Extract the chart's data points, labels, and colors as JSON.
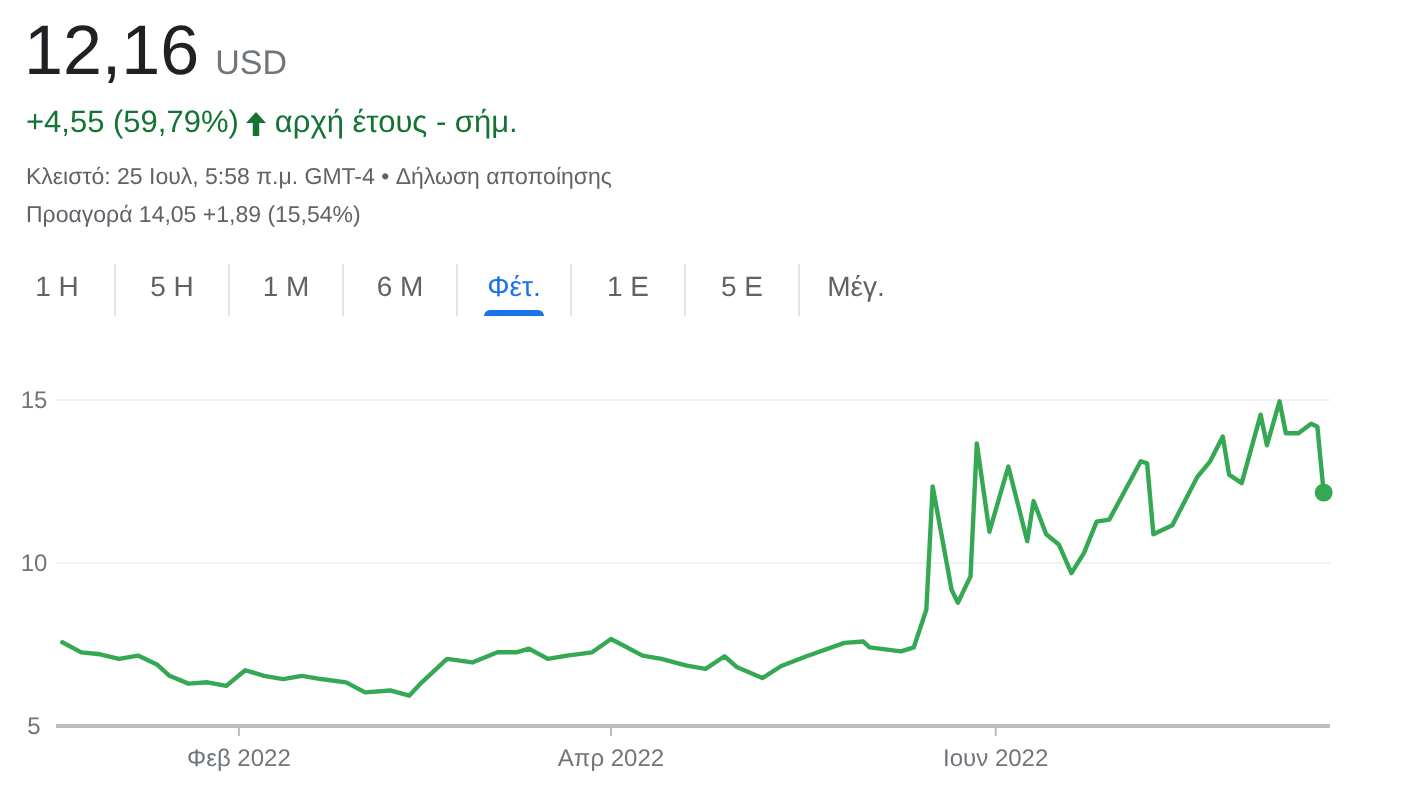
{
  "chart_data": {
    "type": "line",
    "title": "12,16 USD",
    "subtitle": "+4,55 (59,79%)",
    "annotations": [
      "αρχή έτους - σήμ.",
      "Κλειστό: 25 Ιουλ, 5:58 π.μ. GMT-4 • Δήλωση αποποίησης",
      "Προαγορά 14,05 +1,89 (15,54%)",
      "1 Η",
      "5 Η",
      "1 Μ",
      "6 Μ",
      "Φέτ.",
      "1 Ε",
      "5 Ε",
      "Μέγ."
    ],
    "x": [
      "2022-01-04",
      "2022-01-07",
      "2022-01-10",
      "2022-01-13",
      "2022-01-16",
      "2022-01-19",
      "2022-01-21",
      "2022-01-24",
      "2022-01-27",
      "2022-01-30",
      "2022-02-02",
      "2022-02-05",
      "2022-02-08",
      "2022-02-11",
      "2022-02-14",
      "2022-02-18",
      "2022-02-21",
      "2022-02-25",
      "2022-02-28",
      "2022-03-02",
      "2022-03-06",
      "2022-03-10",
      "2022-03-14",
      "2022-03-17",
      "2022-03-19",
      "2022-03-22",
      "2022-03-25",
      "2022-03-29",
      "2022-04-01",
      "2022-04-06",
      "2022-04-09",
      "2022-04-13",
      "2022-04-16",
      "2022-04-19",
      "2022-04-21",
      "2022-04-25",
      "2022-04-28",
      "2022-05-02",
      "2022-05-08",
      "2022-05-11",
      "2022-05-12",
      "2022-05-17",
      "2022-05-19",
      "2022-05-21",
      "2022-05-22",
      "2022-05-25",
      "2022-05-26",
      "2022-05-28",
      "2022-05-29",
      "2022-05-31",
      "2022-06-03",
      "2022-06-06",
      "2022-06-07",
      "2022-06-09",
      "2022-06-11",
      "2022-06-13",
      "2022-06-15",
      "2022-06-17",
      "2022-06-19",
      "2022-06-24",
      "2022-06-25",
      "2022-06-26",
      "2022-06-29",
      "2022-07-03",
      "2022-07-05",
      "2022-07-07",
      "2022-07-08",
      "2022-07-10",
      "2022-07-13",
      "2022-07-14",
      "2022-07-16",
      "2022-07-17",
      "2022-07-19",
      "2022-07-21",
      "2022-07-22",
      "2022-07-23"
    ],
    "series": [
      {
        "color": "#34a853",
        "values": [
          7.57,
          7.26,
          7.2,
          7.06,
          7.16,
          6.89,
          6.54,
          6.3,
          6.34,
          6.23,
          6.71,
          6.54,
          6.44,
          6.54,
          6.44,
          6.34,
          6.03,
          6.09,
          5.93,
          6.34,
          7.06,
          6.95,
          7.26,
          7.26,
          7.37,
          7.06,
          7.16,
          7.26,
          7.67,
          7.16,
          7.06,
          6.85,
          6.75,
          7.14,
          6.8,
          6.47,
          6.84,
          7.14,
          7.55,
          7.59,
          7.41,
          7.29,
          7.41,
          8.57,
          12.35,
          9.18,
          8.78,
          9.59,
          13.67,
          10.96,
          12.96,
          10.67,
          11.9,
          10.88,
          10.57,
          9.69,
          10.31,
          11.27,
          11.33,
          13.12,
          13.06,
          10.88,
          11.16,
          12.65,
          13.12,
          13.88,
          12.71,
          12.45,
          14.55,
          13.61,
          14.96,
          13.98,
          13.98,
          14.27,
          14.18,
          12.16
        ]
      }
    ],
    "xlim": [
      "2022-01-03",
      "2022-07-24"
    ],
    "xticks": [
      {
        "value": "2022-02-01",
        "label": "Φεβ 2022"
      },
      {
        "value": "2022-04-01",
        "label": "Απρ 2022"
      },
      {
        "value": "2022-06-01",
        "label": "Ιουν 2022"
      }
    ],
    "ylim": [
      5,
      15
    ],
    "yticks": [
      5,
      10,
      15
    ],
    "grid": "y",
    "marker": "none",
    "line_style": "solid"
  }
}
